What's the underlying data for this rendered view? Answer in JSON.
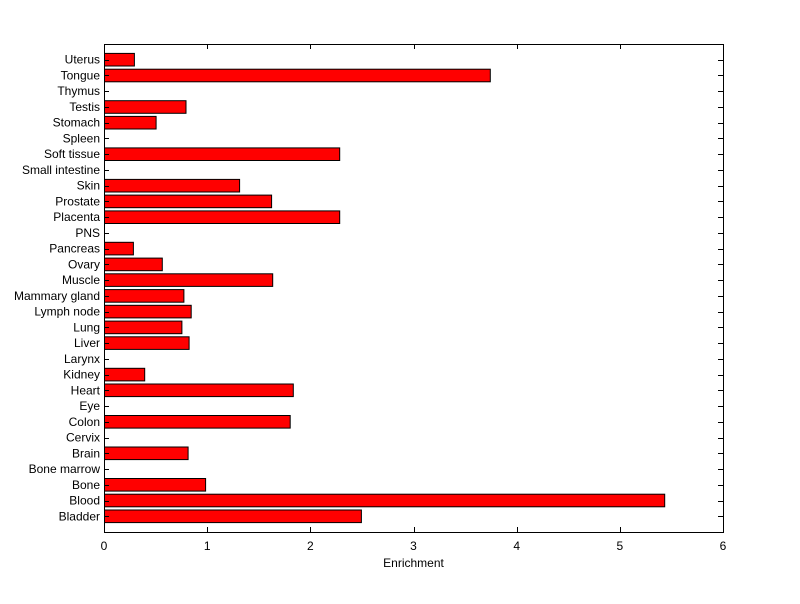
{
  "chart_data": {
    "type": "bar",
    "orientation": "horizontal",
    "xlabel": "Enrichment",
    "ylabel": "",
    "title": "",
    "xlim": [
      0,
      6
    ],
    "xticks": [
      "0",
      "1",
      "2",
      "3",
      "4",
      "5",
      "6"
    ],
    "grid": false,
    "bar_color": "#ff0000",
    "bar_edge_color": "#000000",
    "categories": [
      "Bladder",
      "Blood",
      "Bone",
      "Bone marrow",
      "Brain",
      "Cervix",
      "Colon",
      "Eye",
      "Heart",
      "Kidney",
      "Larynx",
      "Liver",
      "Lung",
      "Lymph node",
      "Mammary gland",
      "Muscle",
      "Ovary",
      "Pancreas",
      "PNS",
      "Placenta",
      "Prostate",
      "Skin",
      "Small intestine",
      "Soft tissue",
      "Spleen",
      "Stomach",
      "Testis",
      "Thymus",
      "Tongue",
      "Uterus"
    ],
    "values": [
      2.49,
      5.43,
      0.98,
      0,
      0.81,
      0,
      1.8,
      0,
      1.83,
      0.39,
      0,
      0.82,
      0.75,
      0.84,
      0.77,
      1.63,
      0.56,
      0.28,
      0,
      2.28,
      1.62,
      1.31,
      0,
      2.28,
      0,
      0.5,
      0.79,
      0,
      3.74,
      0.29
    ]
  }
}
